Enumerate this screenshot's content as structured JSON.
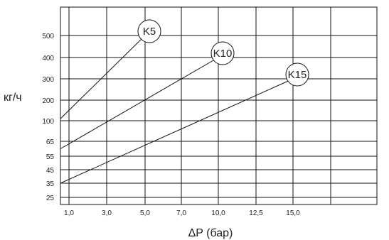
{
  "chart_data": {
    "type": "line",
    "xlabel": "ΔP (бар)",
    "ylabel": "кг/ч",
    "x_ticks": [
      "1,0",
      "3,0",
      "5,0",
      "7,0",
      "10,0",
      "12,5",
      "15,0"
    ],
    "y_ticks": [
      "25",
      "35",
      "45",
      "55",
      "65",
      "100",
      "200",
      "300",
      "400",
      "500"
    ],
    "series": [
      {
        "name": "K5",
        "points": [
          [
            "1,0",
            110
          ],
          [
            "5,0",
            500
          ]
        ]
      },
      {
        "name": "K10",
        "points": [
          [
            "1,0",
            60
          ],
          [
            "10,0",
            400
          ]
        ]
      },
      {
        "name": "K15",
        "points": [
          [
            "1,0",
            35
          ],
          [
            "15,0",
            300
          ]
        ]
      }
    ],
    "grid": true,
    "scale": "non-uniform (category-spaced ticks)"
  }
}
